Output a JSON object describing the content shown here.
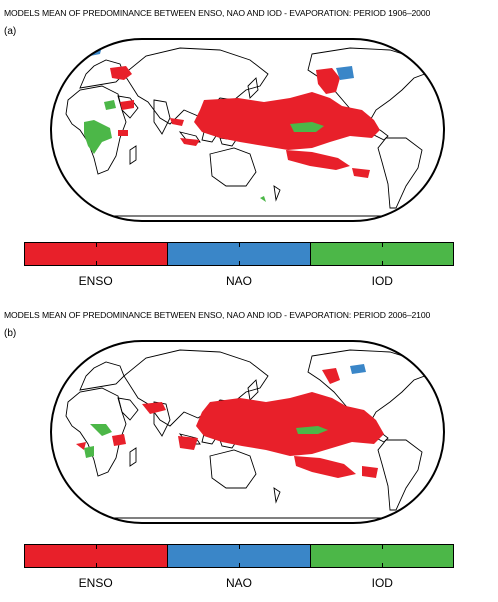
{
  "panels": [
    {
      "title": "MODELS MEAN OF PREDOMINANCE BETWEEN ENSO, NAO AND IOD - EVAPORATION: PERIOD 1906–2000",
      "letter": "(a)"
    },
    {
      "title": "MODELS MEAN OF PREDOMINANCE BETWEEN ENSO, NAO AND IOD - EVAPORATION: PERIOD 2006–2100",
      "letter": "(b)"
    }
  ],
  "legend": {
    "categories": [
      {
        "label": "ENSO",
        "color": "#e8202a"
      },
      {
        "label": "NAO",
        "color": "#3a86c8"
      },
      {
        "label": "IOD",
        "color": "#4cb748"
      }
    ]
  },
  "map": {
    "projection": "pacific-centered rounded-rectangle world map",
    "land_outline_color": "#000000"
  }
}
